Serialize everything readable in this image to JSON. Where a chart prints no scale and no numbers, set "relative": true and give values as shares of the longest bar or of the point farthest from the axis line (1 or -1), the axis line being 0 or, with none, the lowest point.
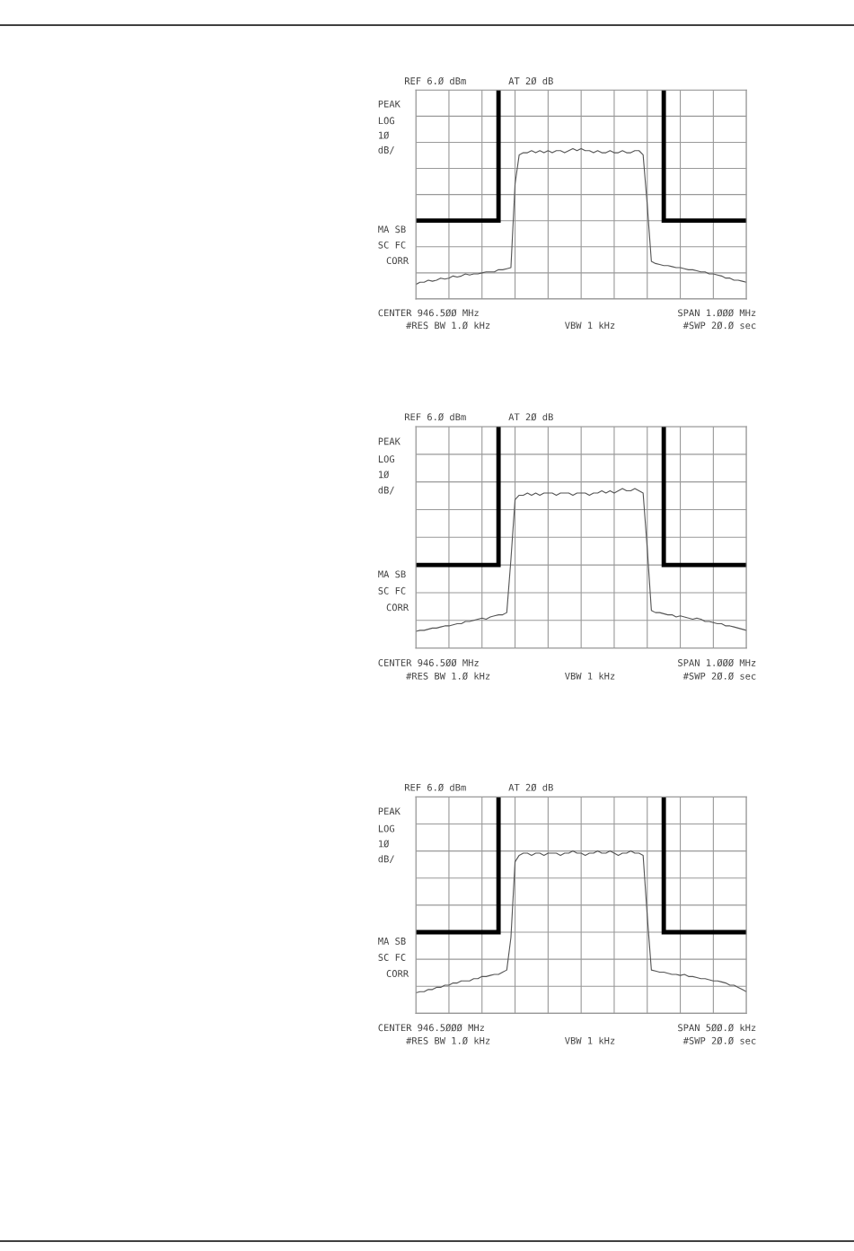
{
  "chart_data": [
    {
      "type": "line",
      "relative": true,
      "grid": true,
      "categories": [
        null,
        null,
        null,
        null,
        null,
        null,
        null,
        null,
        null,
        null,
        null,
        null,
        null,
        null,
        null,
        null,
        null,
        null,
        null,
        null,
        null,
        null,
        null,
        null,
        null,
        null,
        null,
        null,
        null,
        null,
        null,
        null,
        null,
        null,
        null,
        null,
        null,
        null,
        null,
        null,
        null,
        null,
        null,
        null,
        null,
        null,
        null,
        null,
        null,
        null,
        null,
        null,
        null,
        null,
        null,
        null,
        null,
        null,
        null,
        null,
        null,
        null,
        null,
        null,
        null,
        null,
        null,
        null,
        null,
        null,
        null,
        null,
        null,
        null,
        null,
        null,
        null,
        null,
        null,
        null,
        null
      ],
      "annotations": [
        "REF 6.Ø dBm",
        "AT 2Ø dB",
        "PEAK",
        "LOG",
        "1Ø",
        "dB/",
        "MA SB",
        "SC FC",
        "CORR",
        "CENTER 946.5ØØ MHz",
        "SPAN 1.ØØØ MHz",
        "#RES BW 1.Ø kHz",
        "VBW 1 kHz",
        "#SWP 2Ø.Ø sec"
      ],
      "series": [
        {
          "color": "#555555",
          "values": [
            0.07,
            0.08,
            0.08,
            0.09,
            0.085,
            0.09,
            0.1,
            0.095,
            0.1,
            0.11,
            0.105,
            0.11,
            0.12,
            0.115,
            0.12,
            0.12,
            0.125,
            0.13,
            0.13,
            0.13,
            0.14,
            0.14,
            0.145,
            0.15,
            0.55,
            0.69,
            0.7,
            0.7,
            0.71,
            0.7,
            0.71,
            0.7,
            0.71,
            0.7,
            0.71,
            0.71,
            0.7,
            0.71,
            0.72,
            0.71,
            0.72,
            0.71,
            0.71,
            0.7,
            0.71,
            0.7,
            0.7,
            0.71,
            0.7,
            0.7,
            0.71,
            0.7,
            0.7,
            0.71,
            0.71,
            0.69,
            0.45,
            0.18,
            0.17,
            0.165,
            0.16,
            0.16,
            0.155,
            0.15,
            0.15,
            0.145,
            0.14,
            0.14,
            0.135,
            0.13,
            0.13,
            0.12,
            0.12,
            0.115,
            0.11,
            0.1,
            0.1,
            0.09,
            0.09,
            0.085,
            0.08
          ]
        },
        {
          "type": "step",
          "color": "#000000",
          "values": [
            0.375,
            0.375,
            0.375,
            0.375,
            0.375,
            0.375,
            0.375,
            0.375,
            0.375,
            0.375,
            0.375,
            0.375,
            0.375,
            0.375,
            0.375,
            0.375,
            0.375,
            0.375,
            0.375,
            0.375,
            1,
            null,
            null,
            null,
            null,
            null,
            null,
            null,
            null,
            null,
            null,
            null,
            null,
            null,
            null,
            null,
            null,
            null,
            null,
            null,
            null,
            null,
            null,
            null,
            null,
            null,
            null,
            null,
            null,
            null,
            null,
            null,
            null,
            null,
            null,
            null,
            null,
            null,
            null,
            null,
            null,
            null,
            null,
            null,
            null,
            null,
            null,
            null,
            null,
            null,
            null,
            null,
            null,
            null,
            null,
            null,
            null,
            null,
            null,
            null,
            null
          ]
        },
        {
          "type": "step",
          "color": "#000000",
          "values": [
            null,
            null,
            null,
            null,
            null,
            null,
            null,
            null,
            null,
            null,
            null,
            null,
            null,
            null,
            null,
            null,
            null,
            null,
            null,
            null,
            null,
            null,
            null,
            null,
            null,
            null,
            null,
            null,
            null,
            null,
            null,
            null,
            null,
            null,
            null,
            null,
            null,
            null,
            null,
            null,
            null,
            null,
            null,
            null,
            null,
            null,
            null,
            null,
            null,
            null,
            null,
            null,
            null,
            null,
            null,
            null,
            null,
            null,
            null,
            null,
            1,
            0.375,
            0.375,
            0.375,
            0.375,
            0.375,
            0.375,
            0.375,
            0.375,
            0.375,
            0.375,
            0.375,
            0.375,
            0.375,
            0.375,
            0.375,
            0.375,
            0.375,
            0.375,
            0.375,
            0.375
          ]
        }
      ]
    },
    {
      "type": "line",
      "relative": true,
      "grid": true,
      "categories": [
        null,
        null,
        null,
        null,
        null,
        null,
        null,
        null,
        null,
        null,
        null,
        null,
        null,
        null,
        null,
        null,
        null,
        null,
        null,
        null,
        null,
        null,
        null,
        null,
        null,
        null,
        null,
        null,
        null,
        null,
        null,
        null,
        null,
        null,
        null,
        null,
        null,
        null,
        null,
        null,
        null,
        null,
        null,
        null,
        null,
        null,
        null,
        null,
        null,
        null,
        null,
        null,
        null,
        null,
        null,
        null,
        null,
        null,
        null,
        null,
        null,
        null,
        null,
        null,
        null,
        null,
        null,
        null,
        null,
        null,
        null,
        null,
        null,
        null,
        null,
        null,
        null,
        null,
        null,
        null,
        null
      ],
      "annotations": [
        "REF 6.Ø dBm",
        "AT 2Ø dB",
        "PEAK",
        "LOG",
        "1Ø",
        "dB/",
        "MA SB",
        "SC FC",
        "CORR",
        "CENTER 946.5ØØ MHz",
        "SPAN 1.ØØØ MHz",
        "#RES BW 1.Ø kHz",
        "VBW 1 kHz",
        "#SWP 2Ø.Ø sec"
      ],
      "series": [
        {
          "color": "#555555",
          "values": [
            0.075,
            0.08,
            0.08,
            0.085,
            0.09,
            0.09,
            0.095,
            0.1,
            0.1,
            0.105,
            0.11,
            0.11,
            0.12,
            0.12,
            0.125,
            0.13,
            0.135,
            0.13,
            0.14,
            0.145,
            0.15,
            0.15,
            0.16,
            0.4,
            0.67,
            0.69,
            0.69,
            0.7,
            0.69,
            0.7,
            0.69,
            0.7,
            0.7,
            0.7,
            0.69,
            0.7,
            0.7,
            0.7,
            0.69,
            0.7,
            0.7,
            0.7,
            0.69,
            0.7,
            0.7,
            0.71,
            0.7,
            0.71,
            0.7,
            0.71,
            0.72,
            0.71,
            0.71,
            0.72,
            0.71,
            0.7,
            0.45,
            0.17,
            0.16,
            0.16,
            0.155,
            0.15,
            0.15,
            0.14,
            0.145,
            0.14,
            0.135,
            0.13,
            0.135,
            0.13,
            0.12,
            0.12,
            0.115,
            0.11,
            0.11,
            0.1,
            0.1,
            0.095,
            0.09,
            0.085,
            0.08
          ]
        },
        {
          "type": "step",
          "color": "#000000",
          "values": [
            0.375,
            0.375,
            0.375,
            0.375,
            0.375,
            0.375,
            0.375,
            0.375,
            0.375,
            0.375,
            0.375,
            0.375,
            0.375,
            0.375,
            0.375,
            0.375,
            0.375,
            0.375,
            0.375,
            0.375,
            1,
            null,
            null,
            null,
            null,
            null,
            null,
            null,
            null,
            null,
            null,
            null,
            null,
            null,
            null,
            null,
            null,
            null,
            null,
            null,
            null,
            null,
            null,
            null,
            null,
            null,
            null,
            null,
            null,
            null,
            null,
            null,
            null,
            null,
            null,
            null,
            null,
            null,
            null,
            null,
            null,
            null,
            null,
            null,
            null,
            null,
            null,
            null,
            null,
            null,
            null,
            null,
            null,
            null,
            null,
            null,
            null,
            null,
            null,
            null,
            null
          ]
        },
        {
          "type": "step",
          "color": "#000000",
          "values": [
            null,
            null,
            null,
            null,
            null,
            null,
            null,
            null,
            null,
            null,
            null,
            null,
            null,
            null,
            null,
            null,
            null,
            null,
            null,
            null,
            null,
            null,
            null,
            null,
            null,
            null,
            null,
            null,
            null,
            null,
            null,
            null,
            null,
            null,
            null,
            null,
            null,
            null,
            null,
            null,
            null,
            null,
            null,
            null,
            null,
            null,
            null,
            null,
            null,
            null,
            null,
            null,
            null,
            null,
            null,
            null,
            null,
            null,
            null,
            null,
            1,
            0.375,
            0.375,
            0.375,
            0.375,
            0.375,
            0.375,
            0.375,
            0.375,
            0.375,
            0.375,
            0.375,
            0.375,
            0.375,
            0.375,
            0.375,
            0.375,
            0.375,
            0.375,
            0.375,
            0.375
          ]
        }
      ]
    },
    {
      "type": "line",
      "relative": true,
      "grid": true,
      "categories": [
        null,
        null,
        null,
        null,
        null,
        null,
        null,
        null,
        null,
        null,
        null,
        null,
        null,
        null,
        null,
        null,
        null,
        null,
        null,
        null,
        null,
        null,
        null,
        null,
        null,
        null,
        null,
        null,
        null,
        null,
        null,
        null,
        null,
        null,
        null,
        null,
        null,
        null,
        null,
        null,
        null,
        null,
        null,
        null,
        null,
        null,
        null,
        null,
        null,
        null,
        null,
        null,
        null,
        null,
        null,
        null,
        null,
        null,
        null,
        null,
        null,
        null,
        null,
        null,
        null,
        null,
        null,
        null,
        null,
        null,
        null,
        null,
        null,
        null,
        null,
        null,
        null,
        null,
        null,
        null,
        null
      ],
      "annotations": [
        "REF 6.Ø dBm",
        "AT 2Ø dB",
        "PEAK",
        "LOG",
        "1Ø",
        "dB/",
        "MA SB",
        "SC FC",
        "CORR",
        "CENTER 946.5ØØØ MHz",
        "SPAN 5ØØ.Ø kHz",
        "#RES BW 1.Ø kHz",
        "VBW 1 kHz",
        "#SWP 2Ø.Ø sec"
      ],
      "series": [
        {
          "color": "#555555",
          "values": [
            0.095,
            0.1,
            0.1,
            0.11,
            0.11,
            0.12,
            0.12,
            0.13,
            0.13,
            0.14,
            0.14,
            0.15,
            0.15,
            0.15,
            0.16,
            0.16,
            0.17,
            0.17,
            0.175,
            0.18,
            0.18,
            0.19,
            0.2,
            0.35,
            0.7,
            0.73,
            0.74,
            0.74,
            0.73,
            0.74,
            0.74,
            0.73,
            0.74,
            0.74,
            0.74,
            0.73,
            0.74,
            0.74,
            0.75,
            0.74,
            0.74,
            0.73,
            0.74,
            0.74,
            0.75,
            0.74,
            0.74,
            0.75,
            0.74,
            0.73,
            0.74,
            0.74,
            0.75,
            0.74,
            0.74,
            0.73,
            0.45,
            0.2,
            0.195,
            0.19,
            0.19,
            0.185,
            0.18,
            0.18,
            0.175,
            0.18,
            0.17,
            0.17,
            0.165,
            0.16,
            0.16,
            0.155,
            0.15,
            0.15,
            0.145,
            0.14,
            0.13,
            0.13,
            0.12,
            0.11,
            0.1
          ]
        },
        {
          "type": "step",
          "color": "#000000",
          "values": [
            0.375,
            0.375,
            0.375,
            0.375,
            0.375,
            0.375,
            0.375,
            0.375,
            0.375,
            0.375,
            0.375,
            0.375,
            0.375,
            0.375,
            0.375,
            0.375,
            0.375,
            0.375,
            0.375,
            0.375,
            1,
            null,
            null,
            null,
            null,
            null,
            null,
            null,
            null,
            null,
            null,
            null,
            null,
            null,
            null,
            null,
            null,
            null,
            null,
            null,
            null,
            null,
            null,
            null,
            null,
            null,
            null,
            null,
            null,
            null,
            null,
            null,
            null,
            null,
            null,
            null,
            null,
            null,
            null,
            null,
            null,
            null,
            null,
            null,
            null,
            null,
            null,
            null,
            null,
            null,
            null,
            null,
            null,
            null,
            null,
            null,
            null,
            null,
            null,
            null,
            null
          ]
        },
        {
          "type": "step",
          "color": "#000000",
          "values": [
            null,
            null,
            null,
            null,
            null,
            null,
            null,
            null,
            null,
            null,
            null,
            null,
            null,
            null,
            null,
            null,
            null,
            null,
            null,
            null,
            null,
            null,
            null,
            null,
            null,
            null,
            null,
            null,
            null,
            null,
            null,
            null,
            null,
            null,
            null,
            null,
            null,
            null,
            null,
            null,
            null,
            null,
            null,
            null,
            null,
            null,
            null,
            null,
            null,
            null,
            null,
            null,
            null,
            null,
            null,
            null,
            null,
            null,
            null,
            null,
            1,
            0.375,
            0.375,
            0.375,
            0.375,
            0.375,
            0.375,
            0.375,
            0.375,
            0.375,
            0.375,
            0.375,
            0.375,
            0.375,
            0.375,
            0.375,
            0.375,
            0.375,
            0.375,
            0.375,
            0.375
          ]
        }
      ]
    }
  ]
}
